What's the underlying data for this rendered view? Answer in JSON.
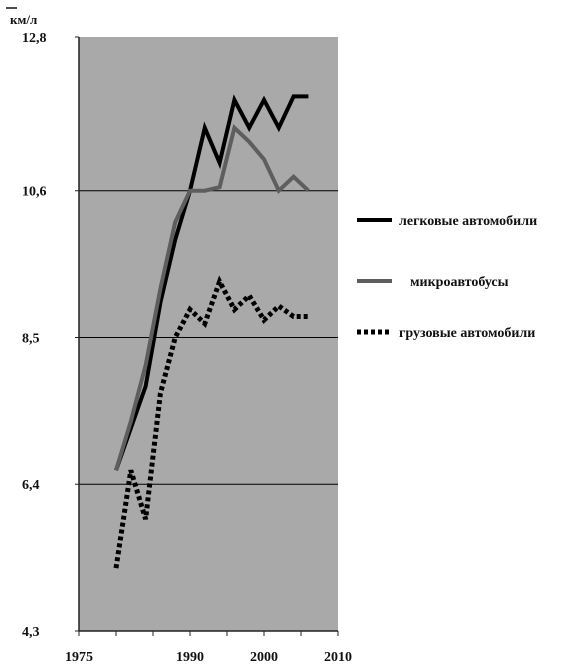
{
  "chart_data": {
    "type": "line",
    "title": "",
    "xlabel": "",
    "ylabel": "км/л",
    "xlim": [
      1975,
      2010
    ],
    "ylim": [
      4.3,
      12.8
    ],
    "xticks": [
      1975,
      1990,
      2000,
      2010
    ],
    "xtick_labels": [
      "1975",
      "1990",
      "2000",
      "2010"
    ],
    "yticks": [
      4.3,
      6.4,
      8.5,
      10.6,
      12.8
    ],
    "ytick_labels": [
      "4,3",
      "6,4",
      "8,5",
      "10,6",
      "12,8"
    ],
    "grid": "horizontal at 6.4, 8.5, 10.6",
    "plot_background": "#a9a9a9",
    "legend_position": "right",
    "series": [
      {
        "name": "легковые автомобили",
        "color": "#000000",
        "style": "solid",
        "x": [
          1980,
          1982,
          1984,
          1986,
          1988,
          1990,
          1992,
          1994,
          1996,
          1998,
          2000,
          2002,
          2004,
          2006
        ],
        "y": [
          6.6,
          7.2,
          7.8,
          9.0,
          9.9,
          10.6,
          11.5,
          11.0,
          11.9,
          11.5,
          11.9,
          11.5,
          11.95,
          11.95
        ]
      },
      {
        "name": "микроавтобусы",
        "color": "#5e5e5e",
        "style": "solid",
        "x": [
          1980,
          1982,
          1984,
          1986,
          1988,
          1990,
          1992,
          1994,
          1996,
          1998,
          2000,
          2002,
          2004,
          2006
        ],
        "y": [
          6.6,
          7.3,
          8.1,
          9.2,
          10.15,
          10.6,
          10.6,
          10.65,
          11.5,
          11.3,
          11.05,
          10.6,
          10.8,
          10.6
        ]
      },
      {
        "name": "грузовые автомобили",
        "color": "#000000",
        "style": "dotted",
        "x": [
          1980,
          1982,
          1984,
          1986,
          1988,
          1990,
          1992,
          1994,
          1996,
          1998,
          2000,
          2002,
          2004,
          2006
        ],
        "y": [
          5.2,
          6.6,
          5.9,
          7.7,
          8.5,
          8.9,
          8.7,
          9.3,
          8.9,
          9.1,
          8.75,
          8.95,
          8.8,
          8.8
        ]
      }
    ]
  }
}
